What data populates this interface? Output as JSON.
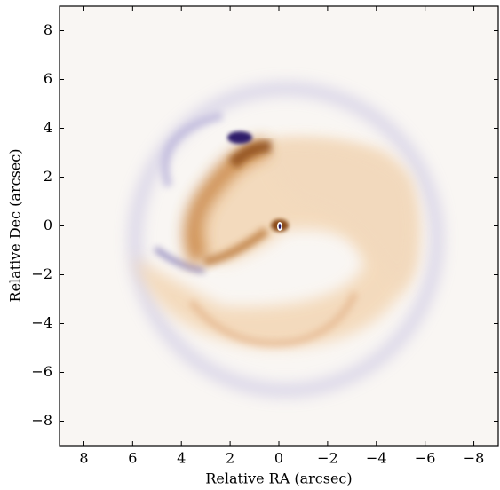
{
  "chart_data": {
    "type": "image",
    "xlabel": "Relative RA (arcsec)",
    "ylabel": "Relative Dec (arcsec)",
    "xlim": [
      9,
      -9
    ],
    "ylim": [
      -9,
      9
    ],
    "xticks": [
      8,
      6,
      4,
      2,
      0,
      {
        "value": -2,
        "label": "−2"
      },
      {
        "value": -4,
        "label": "−4"
      },
      {
        "value": -6,
        "label": "−6"
      },
      {
        "value": -8,
        "label": "−8"
      }
    ],
    "yticks": [
      {
        "value": -8,
        "label": "−8"
      },
      {
        "value": -6,
        "label": "−6"
      },
      {
        "value": -4,
        "label": "−4"
      },
      {
        "value": -2,
        "label": "−2"
      },
      0,
      2,
      4,
      6,
      8
    ]
  }
}
